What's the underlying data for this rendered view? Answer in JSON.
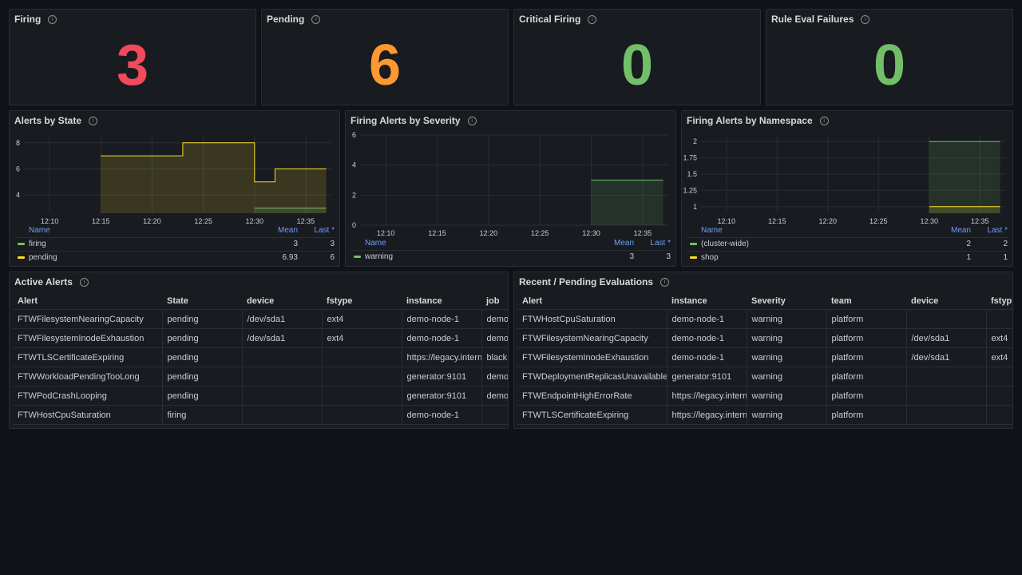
{
  "colors": {
    "red": "#f2495c",
    "orange": "#ff9830",
    "green": "#73bf69",
    "yellow": "#fade2a",
    "bg": "#181b1f",
    "grid": "#2a2d33"
  },
  "stats": [
    {
      "title": "Firing",
      "value": "3",
      "color": "#f2495c"
    },
    {
      "title": "Pending",
      "value": "6",
      "color": "#ff9830"
    },
    {
      "title": "Critical Firing",
      "value": "0",
      "color": "#73bf69"
    },
    {
      "title": "Rule Eval Failures",
      "value": "0",
      "color": "#73bf69"
    }
  ],
  "legend_headers": {
    "name": "Name",
    "mean": "Mean",
    "last": "Last *"
  },
  "charts": {
    "state": {
      "title": "Alerts by State",
      "legend": [
        {
          "name": "firing",
          "mean": "3",
          "last": "3",
          "color": "#73bf69"
        },
        {
          "name": "pending",
          "mean": "6.93",
          "last": "6",
          "color": "#fade2a"
        }
      ]
    },
    "severity": {
      "title": "Firing Alerts by Severity",
      "legend": [
        {
          "name": "warning",
          "mean": "3",
          "last": "3",
          "color": "#73bf69"
        }
      ]
    },
    "namespace": {
      "title": "Firing Alerts by Namespace",
      "legend": [
        {
          "name": "(cluster-wide)",
          "mean": "2",
          "last": "2",
          "color": "#73bf69"
        },
        {
          "name": "shop",
          "mean": "1",
          "last": "1",
          "color": "#fade2a"
        }
      ]
    }
  },
  "chart_data": [
    {
      "type": "area",
      "title": "Alerts by State",
      "x_ticks": [
        "12:10",
        "12:15",
        "12:20",
        "12:25",
        "12:30",
        "12:35"
      ],
      "y_ticks": [
        "4",
        "6",
        "8"
      ],
      "ylim": [
        2.6,
        8.6
      ],
      "grid": true,
      "legend_position": "bottom",
      "series": [
        {
          "name": "pending",
          "color": "#fade2a",
          "points": [
            [
              "12:15",
              7
            ],
            [
              "12:23",
              7
            ],
            [
              "12:23",
              8
            ],
            [
              "12:30",
              8
            ],
            [
              "12:30",
              5
            ],
            [
              "12:32",
              5
            ],
            [
              "12:32",
              6
            ],
            [
              "12:37",
              6
            ]
          ]
        },
        {
          "name": "firing",
          "color": "#73bf69",
          "points": [
            [
              "12:30",
              3
            ],
            [
              "12:37",
              3
            ]
          ]
        }
      ]
    },
    {
      "type": "area",
      "title": "Firing Alerts by Severity",
      "x_ticks": [
        "12:10",
        "12:15",
        "12:20",
        "12:25",
        "12:30",
        "12:35"
      ],
      "y_ticks": [
        "0",
        "2",
        "4",
        "6"
      ],
      "ylim": [
        0,
        6
      ],
      "grid": true,
      "legend_position": "bottom",
      "series": [
        {
          "name": "warning",
          "color": "#73bf69",
          "points": [
            [
              "12:30",
              3
            ],
            [
              "12:37",
              3
            ]
          ]
        }
      ]
    },
    {
      "type": "area",
      "title": "Firing Alerts by Namespace",
      "x_ticks": [
        "12:10",
        "12:15",
        "12:20",
        "12:25",
        "12:30",
        "12:35"
      ],
      "y_ticks": [
        "1",
        "1.25",
        "1.5",
        "1.75",
        "2"
      ],
      "ylim": [
        0.9,
        2.1
      ],
      "grid": true,
      "legend_position": "bottom",
      "series": [
        {
          "name": "(cluster-wide)",
          "color": "#73bf69",
          "points": [
            [
              "12:30",
              2
            ],
            [
              "12:37",
              2
            ]
          ]
        },
        {
          "name": "shop",
          "color": "#fade2a",
          "points": [
            [
              "12:30",
              1
            ],
            [
              "12:37",
              1
            ]
          ]
        }
      ]
    }
  ],
  "active": {
    "title": "Active Alerts",
    "columns": [
      "Alert",
      "State",
      "device",
      "fstype",
      "instance",
      "job"
    ],
    "rows": [
      [
        "FTWFilesystemNearingCapacity",
        "pending",
        "/dev/sda1",
        "ext4",
        "demo-node-1",
        "demo"
      ],
      [
        "FTWFilesystemInodeExhaustion",
        "pending",
        "/dev/sda1",
        "ext4",
        "demo-node-1",
        "demo"
      ],
      [
        "FTWTLSCertificateExpiring",
        "pending",
        "",
        "",
        "https://legacy.interna",
        "black"
      ],
      [
        "FTWWorkloadPendingTooLong",
        "pending",
        "",
        "",
        "generator:9101",
        "demo"
      ],
      [
        "FTWPodCrashLooping",
        "pending",
        "",
        "",
        "generator:9101",
        "demo"
      ],
      [
        "FTWHostCpuSaturation",
        "firing",
        "",
        "",
        "demo-node-1",
        ""
      ]
    ]
  },
  "recent": {
    "title": "Recent / Pending Evaluations",
    "columns": [
      "Alert",
      "instance",
      "Severity",
      "team",
      "device",
      "fstyp"
    ],
    "rows": [
      [
        "FTWHostCpuSaturation",
        "demo-node-1",
        "warning",
        "platform",
        "",
        ""
      ],
      [
        "FTWFilesystemNearingCapacity",
        "demo-node-1",
        "warning",
        "platform",
        "/dev/sda1",
        "ext4"
      ],
      [
        "FTWFilesystemInodeExhaustion",
        "demo-node-1",
        "warning",
        "platform",
        "/dev/sda1",
        "ext4"
      ],
      [
        "FTWDeploymentReplicasUnavailable",
        "generator:9101",
        "warning",
        "platform",
        "",
        ""
      ],
      [
        "FTWEndpointHighErrorRate",
        "https://legacy.interna",
        "warning",
        "platform",
        "",
        ""
      ],
      [
        "FTWTLSCertificateExpiring",
        "https://legacy.interna",
        "warning",
        "platform",
        "",
        ""
      ]
    ]
  }
}
